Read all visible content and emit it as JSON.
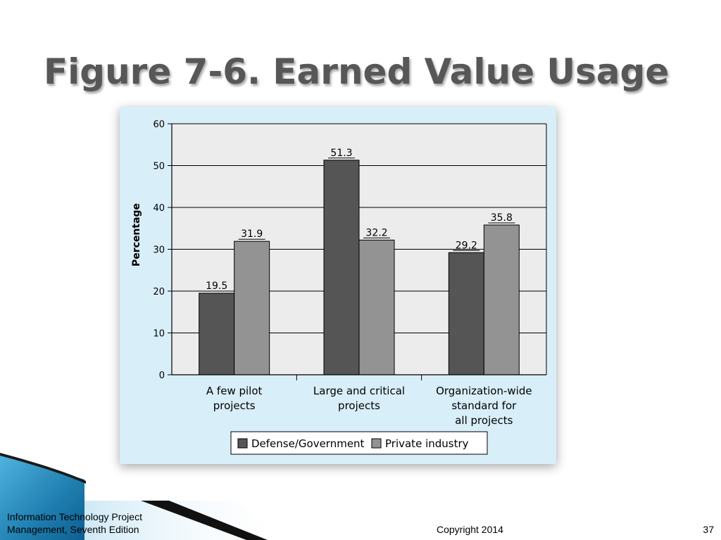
{
  "slide": {
    "title": "Figure 7-6. Earned Value Usage",
    "footer_left_line1": "Information Technology Project",
    "footer_left_line2": "Management, Seventh Edition",
    "footer_center": "Copyright 2014",
    "page_number": "37"
  },
  "colors": {
    "defense": "#555555",
    "private": "#939393",
    "plot_bg": "#ececec",
    "panel_bg": "#d8eef8",
    "deco_blue": "#2e8fbf"
  },
  "chart_data": {
    "type": "bar",
    "title": "",
    "xlabel": "",
    "ylabel": "Percentage",
    "ylim": [
      0,
      60
    ],
    "yticks": [
      0,
      10,
      20,
      30,
      40,
      50,
      60
    ],
    "grid": true,
    "legend_position": "bottom",
    "categories": [
      [
        "A few pilot",
        "projects"
      ],
      [
        "Large and critical",
        "projects"
      ],
      [
        "Organization-wide",
        "standard for",
        "all projects"
      ]
    ],
    "series": [
      {
        "name": "Defense/Government",
        "values": [
          19.5,
          51.3,
          29.2
        ],
        "labels": [
          "19.5",
          "51.3",
          "29.2"
        ]
      },
      {
        "name": "Private industry",
        "values": [
          31.9,
          32.2,
          35.8
        ],
        "labels": [
          "31.9",
          "32.2",
          "35.8"
        ]
      }
    ]
  }
}
